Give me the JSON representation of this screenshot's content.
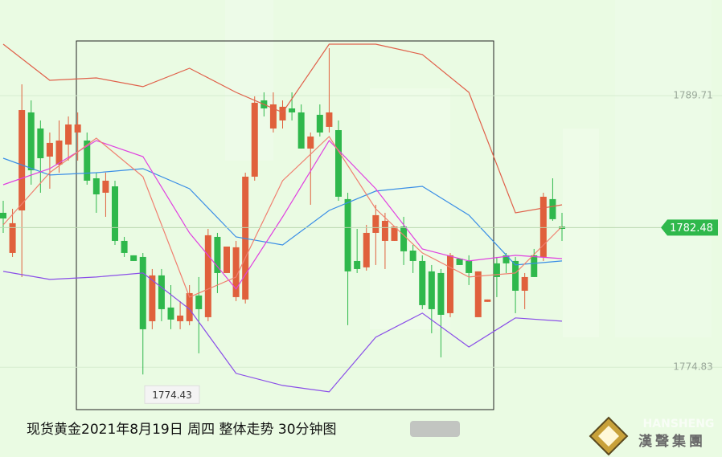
{
  "chart_data": {
    "type": "candlestick",
    "ylim": [
      1769.91,
      1794.95
    ],
    "yticks": [
      1789.71,
      1774.83
    ],
    "grid": true,
    "up_color": "#e0603c",
    "down_color": "#2fb84c",
    "caption": "现货黄金2021年8月19日 周四 整体走势  30分钟图",
    "last_price": 1782.48,
    "low_annotation": 1774.43,
    "logo_text": "漢聲集團",
    "logo_watermark": "HANSHENG",
    "open": [
      1783.29,
      1781.09,
      1783.42,
      1788.79,
      1787.91,
      1786.37,
      1785.93,
      1787.03,
      1787.69,
      1787.25,
      1785.18,
      1784.39,
      1784.74,
      1781.75,
      1780.96,
      1780.87,
      1777.35,
      1779.86,
      1778.1,
      1777.35,
      1777.35,
      1778.76,
      1777.57,
      1781.97,
      1779.99,
      1778.67,
      1778.54,
      1785.27,
      1789.45,
      1787.91,
      1788.35,
      1789.01,
      1788.79,
      1786.81,
      1788.66,
      1788.0,
      1787.82,
      1784.04,
      1780.65,
      1780.3,
      1782.19,
      1781.75,
      1781.75,
      1782.54,
      1781.22,
      1780.65,
      1780.08,
      1779.99,
      1777.79,
      1780.78,
      1780.65,
      1777.57,
      1778.41,
      1780.52,
      1780.96,
      1780.65,
      1779.02,
      1780.96,
      1780.87,
      1784.04,
      1782.54
    ],
    "high": [
      1783.95,
      1783.51,
      1790.33,
      1789.45,
      1788.35,
      1787.69,
      1788.35,
      1788.57,
      1788.79,
      1787.69,
      1785.49,
      1785.49,
      1785.05,
      1781.97,
      1780.96,
      1781.09,
      1780.21,
      1780.21,
      1779.33,
      1778.45,
      1779.33,
      1779.77,
      1782.41,
      1782.19,
      1781.44,
      1781.75,
      1785.49,
      1789.67,
      1789.89,
      1789.89,
      1789.45,
      1789.89,
      1789.23,
      1787.69,
      1789.23,
      1792.31,
      1788.35,
      1784.39,
      1782.41,
      1782.63,
      1783.73,
      1783.29,
      1782.54,
      1783.07,
      1781.53,
      1780.96,
      1780.43,
      1780.21,
      1781.09,
      1780.78,
      1780.96,
      1780.08,
      1778.54,
      1780.87,
      1781.09,
      1780.87,
      1779.99,
      1781.31,
      1784.39,
      1785.18,
      1783.29
    ],
    "low": [
      1782.19,
      1780.87,
      1779.77,
      1784.83,
      1784.39,
      1784.61,
      1785.49,
      1786.15,
      1786.15,
      1784.83,
      1783.29,
      1783.07,
      1781.53,
      1780.87,
      1780.65,
      1774.43,
      1776.91,
      1777.35,
      1776.91,
      1776.91,
      1777.13,
      1775.59,
      1777.35,
      1778.89,
      1779.99,
      1778.45,
      1778.32,
      1785.05,
      1788.57,
      1787.69,
      1787.91,
      1788.35,
      1786.81,
      1783.73,
      1787.47,
      1787.69,
      1783.95,
      1777.13,
      1779.99,
      1780.12,
      1780.43,
      1780.21,
      1781.75,
      1780.43,
      1779.99,
      1778.01,
      1776.69,
      1775.37,
      1777.57,
      1780.43,
      1779.33,
      1777.57,
      1778.41,
      1778.67,
      1779.99,
      1777.79,
      1778.01,
      1779.77,
      1780.65,
      1782.85,
      1781.75
    ],
    "close": [
      1782.98,
      1782.72,
      1788.92,
      1785.62,
      1786.28,
      1787.12,
      1787.25,
      1788.13,
      1788.13,
      1785.05,
      1784.3,
      1785.05,
      1781.75,
      1781.09,
      1780.65,
      1776.91,
      1779.86,
      1778.01,
      1777.44,
      1777.66,
      1778.89,
      1778.01,
      1782.06,
      1779.99,
      1781.44,
      1781.4,
      1785.27,
      1789.32,
      1789.01,
      1789.23,
      1789.1,
      1788.79,
      1786.81,
      1787.47,
      1787.69,
      1788.79,
      1784.17,
      1780.08,
      1780.21,
      1782.19,
      1783.16,
      1782.85,
      1782.54,
      1781.18,
      1780.65,
      1778.23,
      1778.01,
      1777.7,
      1780.96,
      1780.43,
      1779.99,
      1780.08,
      1778.54,
      1779.77,
      1780.52,
      1779.02,
      1779.77,
      1779.77,
      1784.17,
      1782.94,
      1782.41
    ],
    "line_x": [
      0,
      5,
      10,
      15,
      20,
      25,
      30,
      35,
      40,
      45,
      50,
      55,
      60
    ],
    "lines": [
      {
        "color": "#e0604a",
        "values": [
          1792.53,
          1790.55,
          1790.68,
          1790.2,
          1791.21,
          1789.89,
          1788.79,
          1792.53,
          1792.53,
          1791.96,
          1789.89,
          1783.29,
          1783.73
        ]
      },
      {
        "color": "#3a8ee6",
        "values": [
          1786.28,
          1785.36,
          1785.49,
          1785.71,
          1784.61,
          1781.97,
          1781.53,
          1783.42,
          1784.48,
          1784.74,
          1783.16,
          1780.43,
          1780.65
        ]
      },
      {
        "color": "#8a4ee8",
        "values": [
          1780.08,
          1779.64,
          1779.77,
          1779.99,
          1778.01,
          1774.49,
          1773.83,
          1773.48,
          1776.47,
          1777.79,
          1775.94,
          1777.53,
          1777.35
        ]
      },
      {
        "color": "#e040e0",
        "values": [
          1784.83,
          1785.71,
          1787.25,
          1786.37,
          1782.19,
          1779.11,
          1783.07,
          1787.25,
          1784.61,
          1781.31,
          1780.65,
          1780.96,
          1780.78
        ]
      },
      {
        "color": "#f08070",
        "values": [
          1782.63,
          1785.49,
          1787.38,
          1785.27,
          1778.67,
          1779.77,
          1785.05,
          1787.47,
          1783.51,
          1781.09,
          1779.77,
          1779.99,
          1782.54
        ]
      }
    ]
  }
}
